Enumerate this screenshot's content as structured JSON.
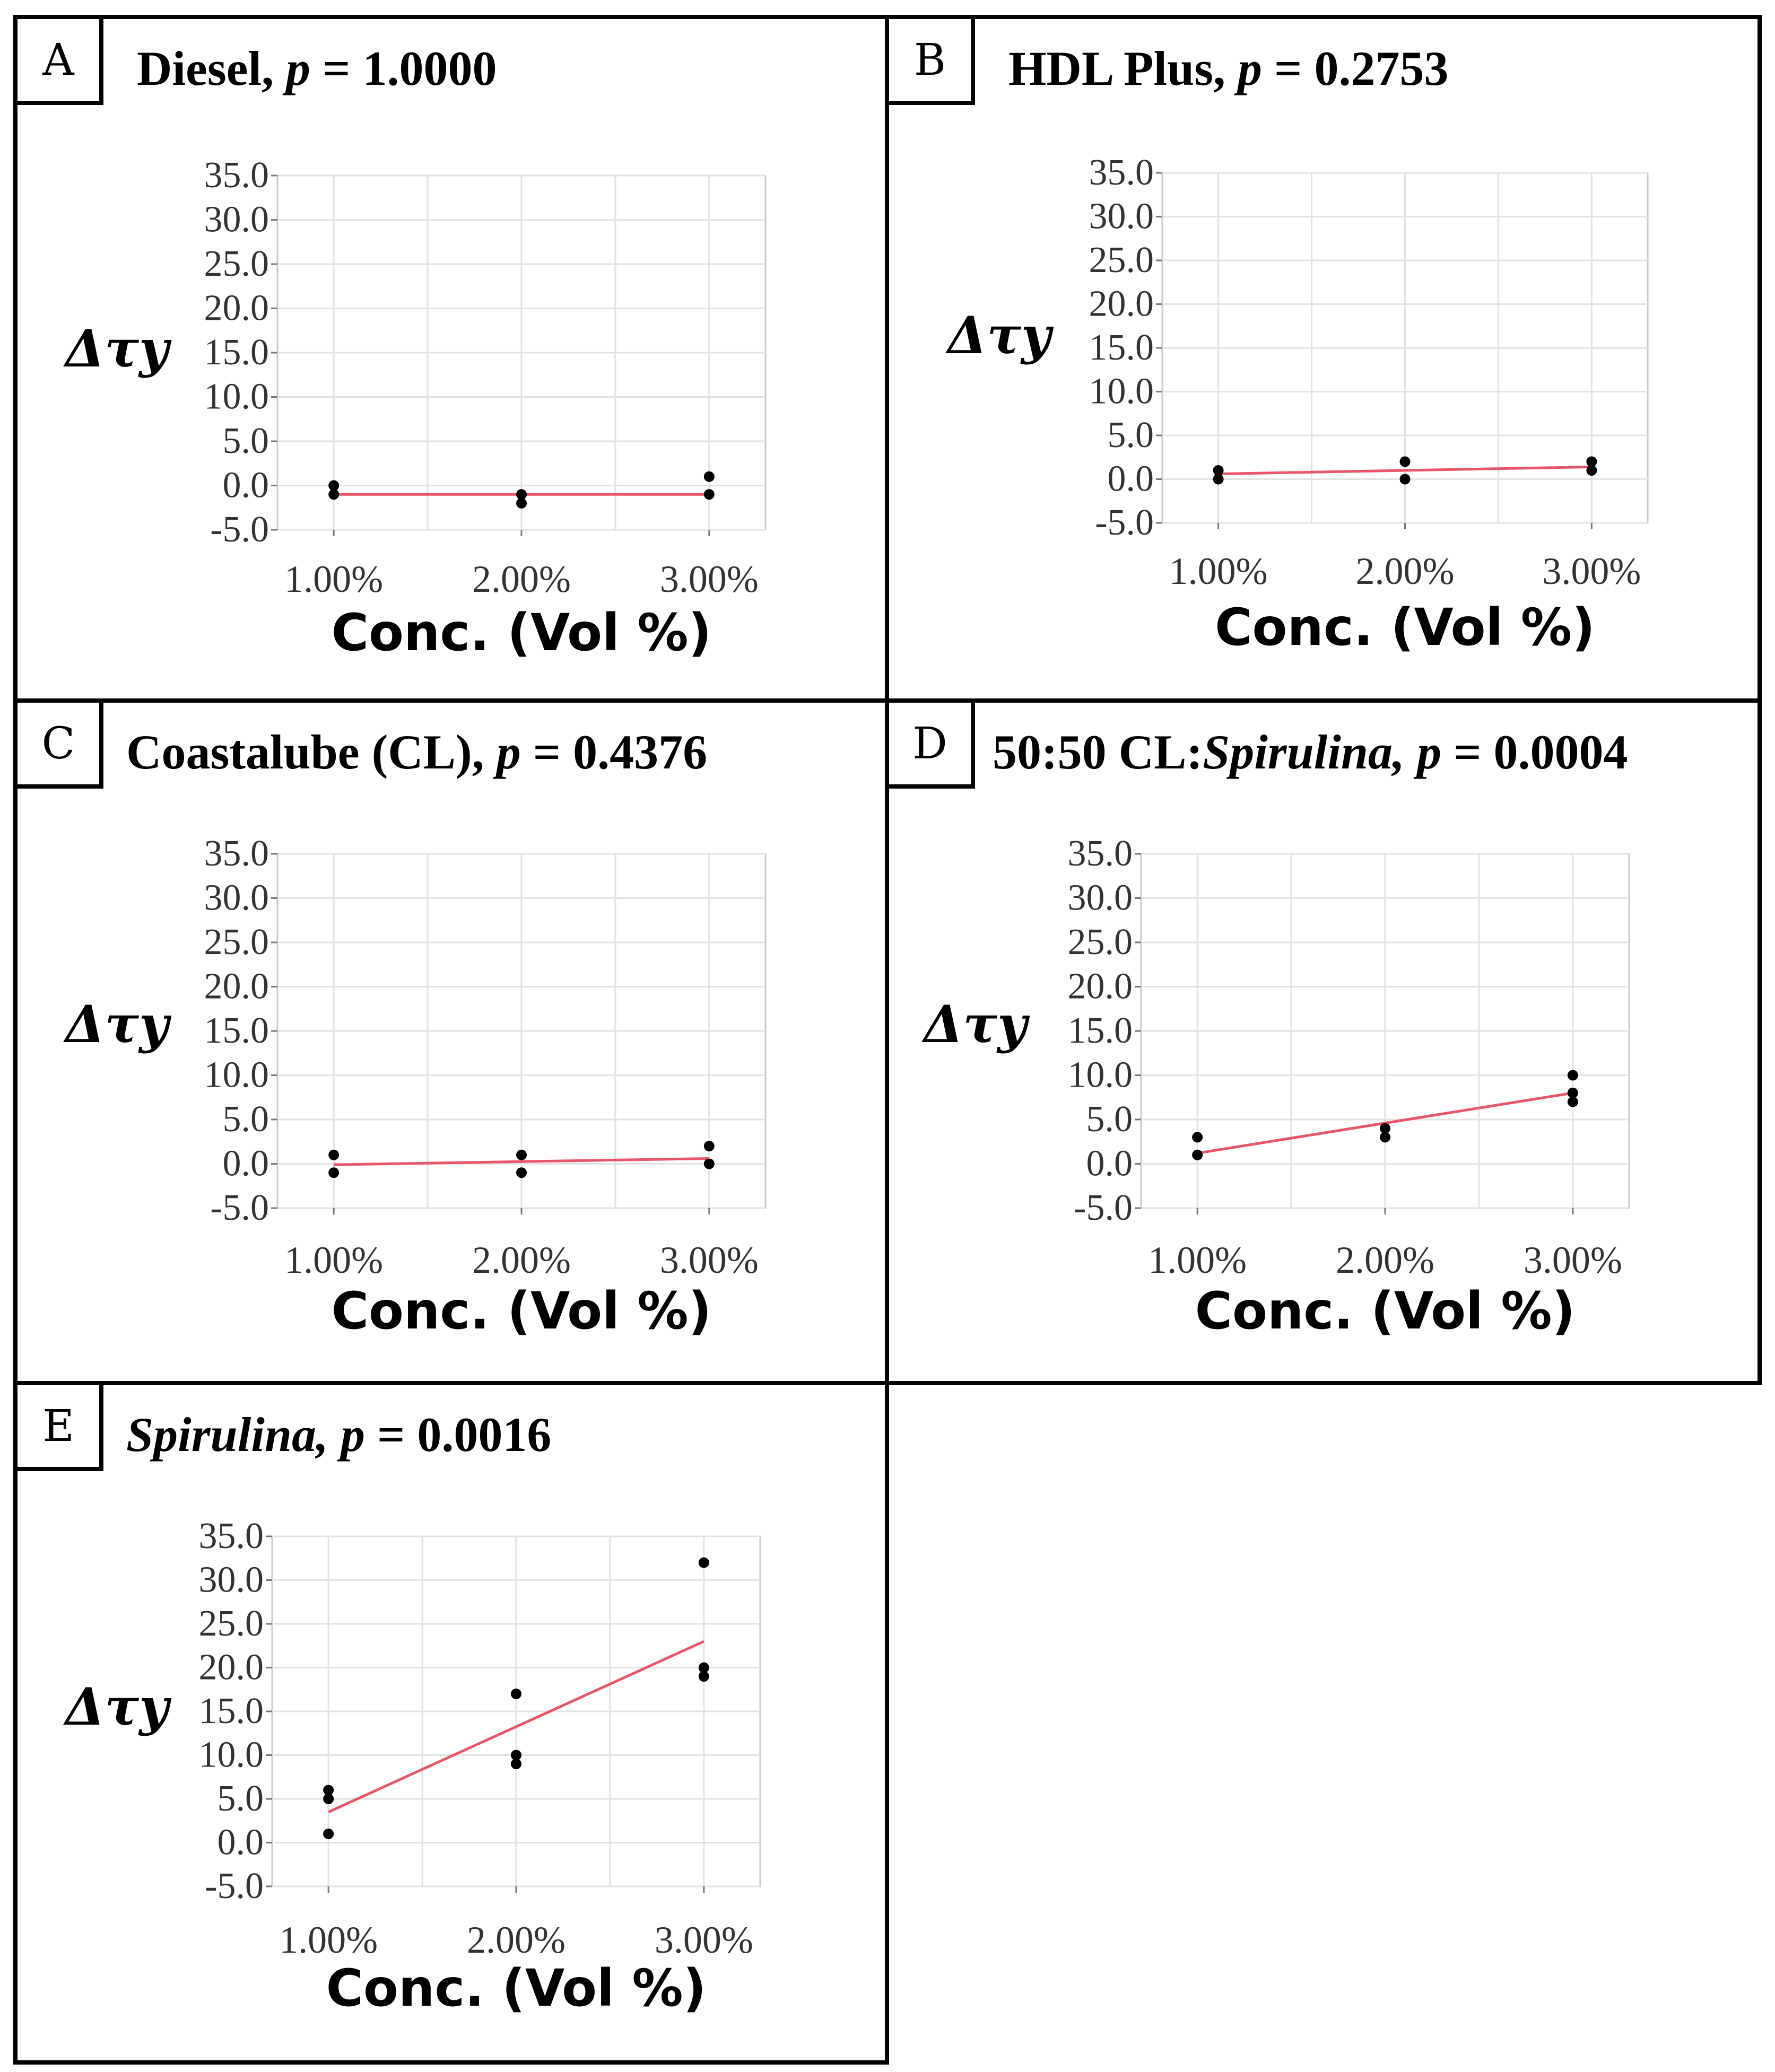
{
  "chart_data": [
    {
      "id": "A",
      "type": "scatter",
      "title_name": "Diesel,",
      "title_italic": false,
      "p_label": "p",
      "p_eq": " = 1.0000",
      "ylabel": "Δτy",
      "xlabel": "Conc. (Vol %)",
      "categories": [
        "1.00%",
        "2.00%",
        "3.00%"
      ],
      "x": [
        1,
        2,
        3
      ],
      "ylim": [
        -5,
        35
      ],
      "yticks": [
        "35.0",
        "30.0",
        "25.0",
        "20.0",
        "15.0",
        "10.0",
        "5.0",
        "0.0",
        "-5.0"
      ],
      "points": [
        [
          1,
          0
        ],
        [
          1,
          -1
        ],
        [
          2,
          -1
        ],
        [
          2,
          -2
        ],
        [
          3,
          1
        ],
        [
          3,
          -1
        ]
      ],
      "fit": [
        [
          1,
          -1
        ],
        [
          3,
          -1
        ]
      ],
      "fit_color": "#e8566b"
    },
    {
      "id": "B",
      "type": "scatter",
      "title_name": "HDL Plus,",
      "title_italic": false,
      "p_label": "p",
      "p_eq": " = 0.2753",
      "ylabel": "Δτy",
      "xlabel": "Conc. (Vol %)",
      "categories": [
        "1.00%",
        "2.00%",
        "3.00%"
      ],
      "x": [
        1,
        2,
        3
      ],
      "ylim": [
        -5,
        35
      ],
      "yticks": [
        "35.0",
        "30.0",
        "25.0",
        "20.0",
        "15.0",
        "10.0",
        "5.0",
        "0.0",
        "-5.0"
      ],
      "points": [
        [
          1,
          1
        ],
        [
          1,
          0
        ],
        [
          2,
          2
        ],
        [
          2,
          0
        ],
        [
          3,
          2
        ],
        [
          3,
          1
        ]
      ],
      "fit": [
        [
          1,
          0.6
        ],
        [
          3,
          1.4
        ]
      ],
      "fit_color": "#e8566b"
    },
    {
      "id": "C",
      "type": "scatter",
      "title_name": "Coastalube (CL),",
      "title_italic": false,
      "p_label": "p",
      "p_eq": " = 0.4376",
      "ylabel": "Δτy",
      "xlabel": "Conc. (Vol %)",
      "categories": [
        "1.00%",
        "2.00%",
        "3.00%"
      ],
      "x": [
        1,
        2,
        3
      ],
      "ylim": [
        -5,
        35
      ],
      "yticks": [
        "35.0",
        "30.0",
        "25.0",
        "20.0",
        "15.0",
        "10.0",
        "5.0",
        "0.0",
        "-5.0"
      ],
      "points": [
        [
          1,
          1
        ],
        [
          1,
          -1
        ],
        [
          2,
          1
        ],
        [
          2,
          -1
        ],
        [
          3,
          2
        ],
        [
          3,
          0
        ]
      ],
      "fit": [
        [
          1,
          -0.1
        ],
        [
          3,
          0.6
        ]
      ],
      "fit_color": "#e8566b"
    },
    {
      "id": "D",
      "type": "scatter",
      "title_prefix": "50:50 CL:",
      "title_name": "Spirulina,",
      "title_italic": true,
      "p_label": "p",
      "p_eq": " = 0.0004",
      "ylabel": "Δτy",
      "xlabel": "Conc. (Vol %)",
      "categories": [
        "1.00%",
        "2.00%",
        "3.00%"
      ],
      "x": [
        1,
        2,
        3
      ],
      "ylim": [
        -5,
        35
      ],
      "yticks": [
        "35.0",
        "30.0",
        "25.0",
        "20.0",
        "15.0",
        "10.0",
        "5.0",
        "0.0",
        "-5.0"
      ],
      "points": [
        [
          1,
          3
        ],
        [
          1,
          1
        ],
        [
          2,
          4
        ],
        [
          2,
          3
        ],
        [
          3,
          10
        ],
        [
          3,
          8
        ],
        [
          3,
          7
        ]
      ],
      "fit": [
        [
          1,
          1.2
        ],
        [
          3,
          8.0
        ]
      ],
      "fit_color": "#e8566b"
    },
    {
      "id": "E",
      "type": "scatter",
      "title_name": "Spirulina,",
      "title_italic": true,
      "p_label": "p",
      "p_eq": " = 0.0016",
      "ylabel": "Δτy",
      "xlabel": "Conc. (Vol %)",
      "categories": [
        "1.00%",
        "2.00%",
        "3.00%"
      ],
      "x": [
        1,
        2,
        3
      ],
      "ylim": [
        -5,
        35
      ],
      "yticks": [
        "35.0",
        "30.0",
        "25.0",
        "20.0",
        "15.0",
        "10.0",
        "5.0",
        "0.0",
        "-5.0"
      ],
      "points": [
        [
          1,
          6
        ],
        [
          1,
          5
        ],
        [
          1,
          1
        ],
        [
          2,
          17
        ],
        [
          2,
          10
        ],
        [
          2,
          9
        ],
        [
          3,
          32
        ],
        [
          3,
          20
        ],
        [
          3,
          19
        ]
      ],
      "fit": [
        [
          1,
          3.5
        ],
        [
          3,
          23.0
        ]
      ],
      "fit_color": "#e8566b"
    }
  ]
}
